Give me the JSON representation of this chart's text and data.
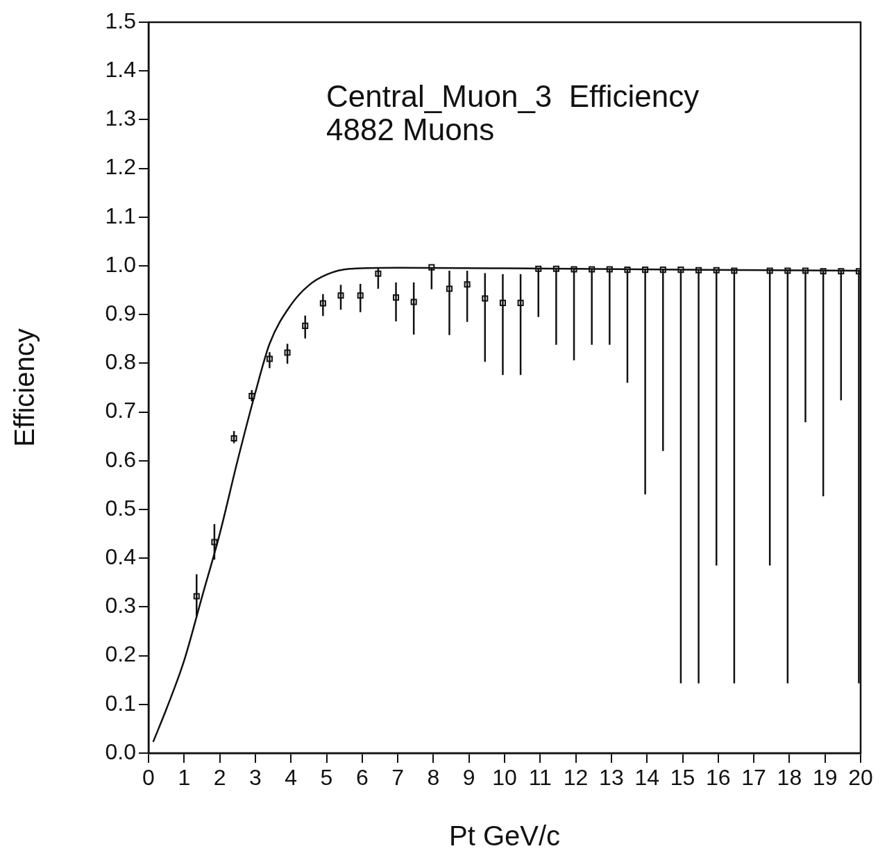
{
  "chart_data": {
    "type": "scatter",
    "title": "Central_Muon_3  Efficiency",
    "subtitle": "4882 Muons",
    "xlabel": "Pt GeV/c",
    "ylabel": "Efficiency",
    "xlim": [
      0,
      20
    ],
    "xticks": [
      0,
      1,
      2,
      3,
      4,
      5,
      6,
      7,
      8,
      9,
      10,
      11,
      12,
      13,
      14,
      15,
      16,
      17,
      18,
      19,
      20
    ],
    "ylim": [
      0,
      1.5
    ],
    "yticks": [
      {
        "value": 0,
        "label": "0.0"
      },
      0.1,
      0.2,
      0.3,
      0.4,
      0.5,
      0.6,
      0.7,
      0.8,
      0.9,
      {
        "value": 1,
        "label": "1.0"
      },
      1.1,
      1.2,
      1.3,
      1.4,
      1.5
    ],
    "grid": false,
    "legend": false,
    "series": [
      {
        "color": "#111111",
        "marker": "square",
        "x": [
          1.35,
          1.85,
          2.4,
          2.9,
          3.4,
          3.9,
          4.4,
          4.9,
          5.4,
          5.95,
          6.45,
          6.95,
          7.45,
          7.95,
          8.45,
          8.95,
          9.45,
          9.95,
          10.45,
          10.95,
          11.45,
          11.95,
          12.45,
          12.95,
          13.45,
          13.95,
          14.45,
          14.95,
          15.45,
          15.95,
          16.45,
          17.45,
          17.95,
          18.45,
          18.95,
          19.45,
          19.95
        ],
        "values": [
          0.322,
          0.433,
          0.646,
          0.733,
          0.809,
          0.822,
          0.877,
          0.923,
          0.939,
          0.939,
          0.984,
          0.935,
          0.926,
          0.997,
          0.953,
          0.962,
          0.933,
          0.924,
          0.924,
          0.994,
          0.994,
          0.993,
          0.993,
          0.993,
          0.992,
          0.992,
          0.992,
          0.992,
          0.991,
          0.991,
          0.99,
          0.99,
          0.99,
          0.99,
          0.989,
          0.989,
          0.989
        ],
        "errors": [
          [
            0.28,
            0.367
          ],
          [
            0.397,
            0.47
          ],
          [
            0.636,
            0.661
          ],
          [
            0.722,
            0.745
          ],
          [
            0.79,
            0.823
          ],
          [
            0.799,
            0.84
          ],
          [
            0.851,
            0.898
          ],
          [
            0.897,
            0.942
          ],
          [
            0.91,
            0.961
          ],
          [
            0.905,
            0.963
          ],
          [
            0.953,
            0.995
          ],
          [
            0.886,
            0.966
          ],
          [
            0.859,
            0.966
          ],
          [
            0.952,
            0.997
          ],
          [
            0.858,
            0.99
          ],
          [
            0.885,
            0.99
          ],
          [
            0.803,
            0.985
          ],
          [
            0.776,
            0.983
          ],
          [
            0.776,
            0.983
          ],
          [
            0.895,
            0.994
          ],
          [
            0.838,
            0.994
          ],
          [
            0.806,
            0.993
          ],
          [
            0.838,
            0.993
          ],
          [
            0.838,
            0.993
          ],
          [
            0.76,
            0.992
          ],
          [
            0.531,
            0.992
          ],
          [
            0.62,
            0.992
          ],
          [
            0.143,
            0.992
          ],
          [
            0.143,
            0.991
          ],
          [
            0.385,
            0.991
          ],
          [
            0.143,
            0.99
          ],
          [
            0.385,
            0.99
          ],
          [
            0.143,
            0.99
          ],
          [
            0.679,
            0.99
          ],
          [
            0.527,
            0.989
          ],
          [
            0.724,
            0.989
          ],
          [
            0.143,
            0.989
          ]
        ]
      },
      {
        "type": "line",
        "color": "#111111",
        "marker": "none",
        "line_style": "solid",
        "x": [
          0.13,
          0.5,
          1.0,
          1.5,
          2.0,
          2.5,
          3.0,
          3.4,
          4.0,
          4.5,
          5.0,
          5.65,
          7,
          10,
          15,
          20
        ],
        "values": [
          0.023,
          0.09,
          0.19,
          0.32,
          0.45,
          0.6,
          0.74,
          0.84,
          0.92,
          0.96,
          0.982,
          0.994,
          0.996,
          0.995,
          0.992,
          0.99
        ]
      }
    ]
  }
}
